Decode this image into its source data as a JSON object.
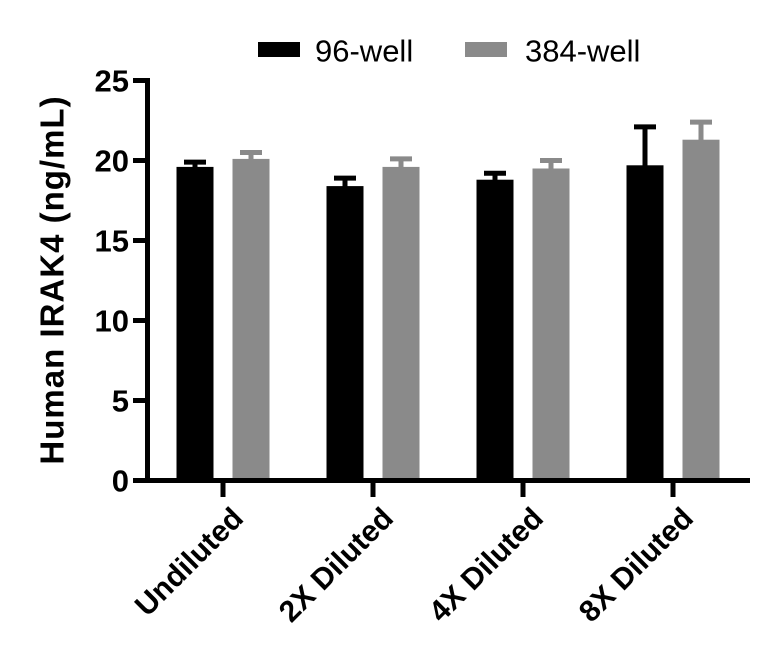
{
  "figure": {
    "background": "#ffffff",
    "axis_color": "#000000"
  },
  "chart_data": {
    "type": "bar",
    "title": "",
    "xlabel": "",
    "ylabel": "Human IRAK4 (ng/mL)",
    "ylim": [
      0,
      25
    ],
    "yticks": [
      0,
      5,
      10,
      15,
      20,
      25
    ],
    "categories": [
      "Undiluted",
      "2X Diluted",
      "4X Diluted",
      "8X Diluted"
    ],
    "series": [
      {
        "name": "96-well",
        "color": "#000000",
        "values": [
          19.6,
          18.4,
          18.8,
          19.7
        ],
        "errors": [
          0.3,
          0.5,
          0.4,
          2.4
        ]
      },
      {
        "name": "384-well",
        "color": "#8a8a8a",
        "values": [
          20.1,
          19.6,
          19.5,
          21.3
        ],
        "errors": [
          0.4,
          0.5,
          0.5,
          1.1
        ]
      }
    ],
    "error_bars": "upper SD only",
    "legend_position": "top-center",
    "grid": false,
    "x_tick_position": "group-center",
    "x_label_rotation_deg": -45
  }
}
